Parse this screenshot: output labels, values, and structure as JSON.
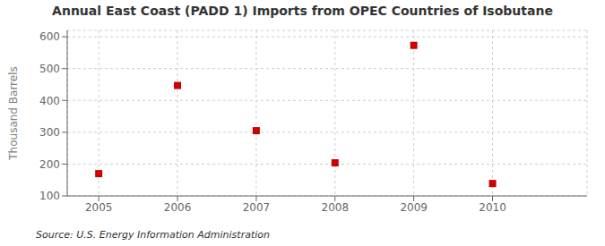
{
  "chart_data": {
    "type": "scatter",
    "title": "Annual East Coast (PADD 1) Imports from OPEC Countries of Isobutane",
    "ylabel": "Thousand Barrels",
    "annotations": [
      "Source: U.S. Energy Information Administration"
    ],
    "x": [
      2005,
      2006,
      2007,
      2008,
      2009,
      2010
    ],
    "values": [
      170,
      447,
      305,
      204,
      573,
      139
    ],
    "color": "#cc0000",
    "marker": "square",
    "xlim": [
      2004.6,
      2011.2
    ],
    "xticks": [
      2005,
      2006,
      2007,
      2008,
      2009,
      2010
    ],
    "ylim": [
      100,
      620
    ],
    "yticks": [
      100,
      200,
      300,
      400,
      500,
      600
    ],
    "grid": true
  }
}
